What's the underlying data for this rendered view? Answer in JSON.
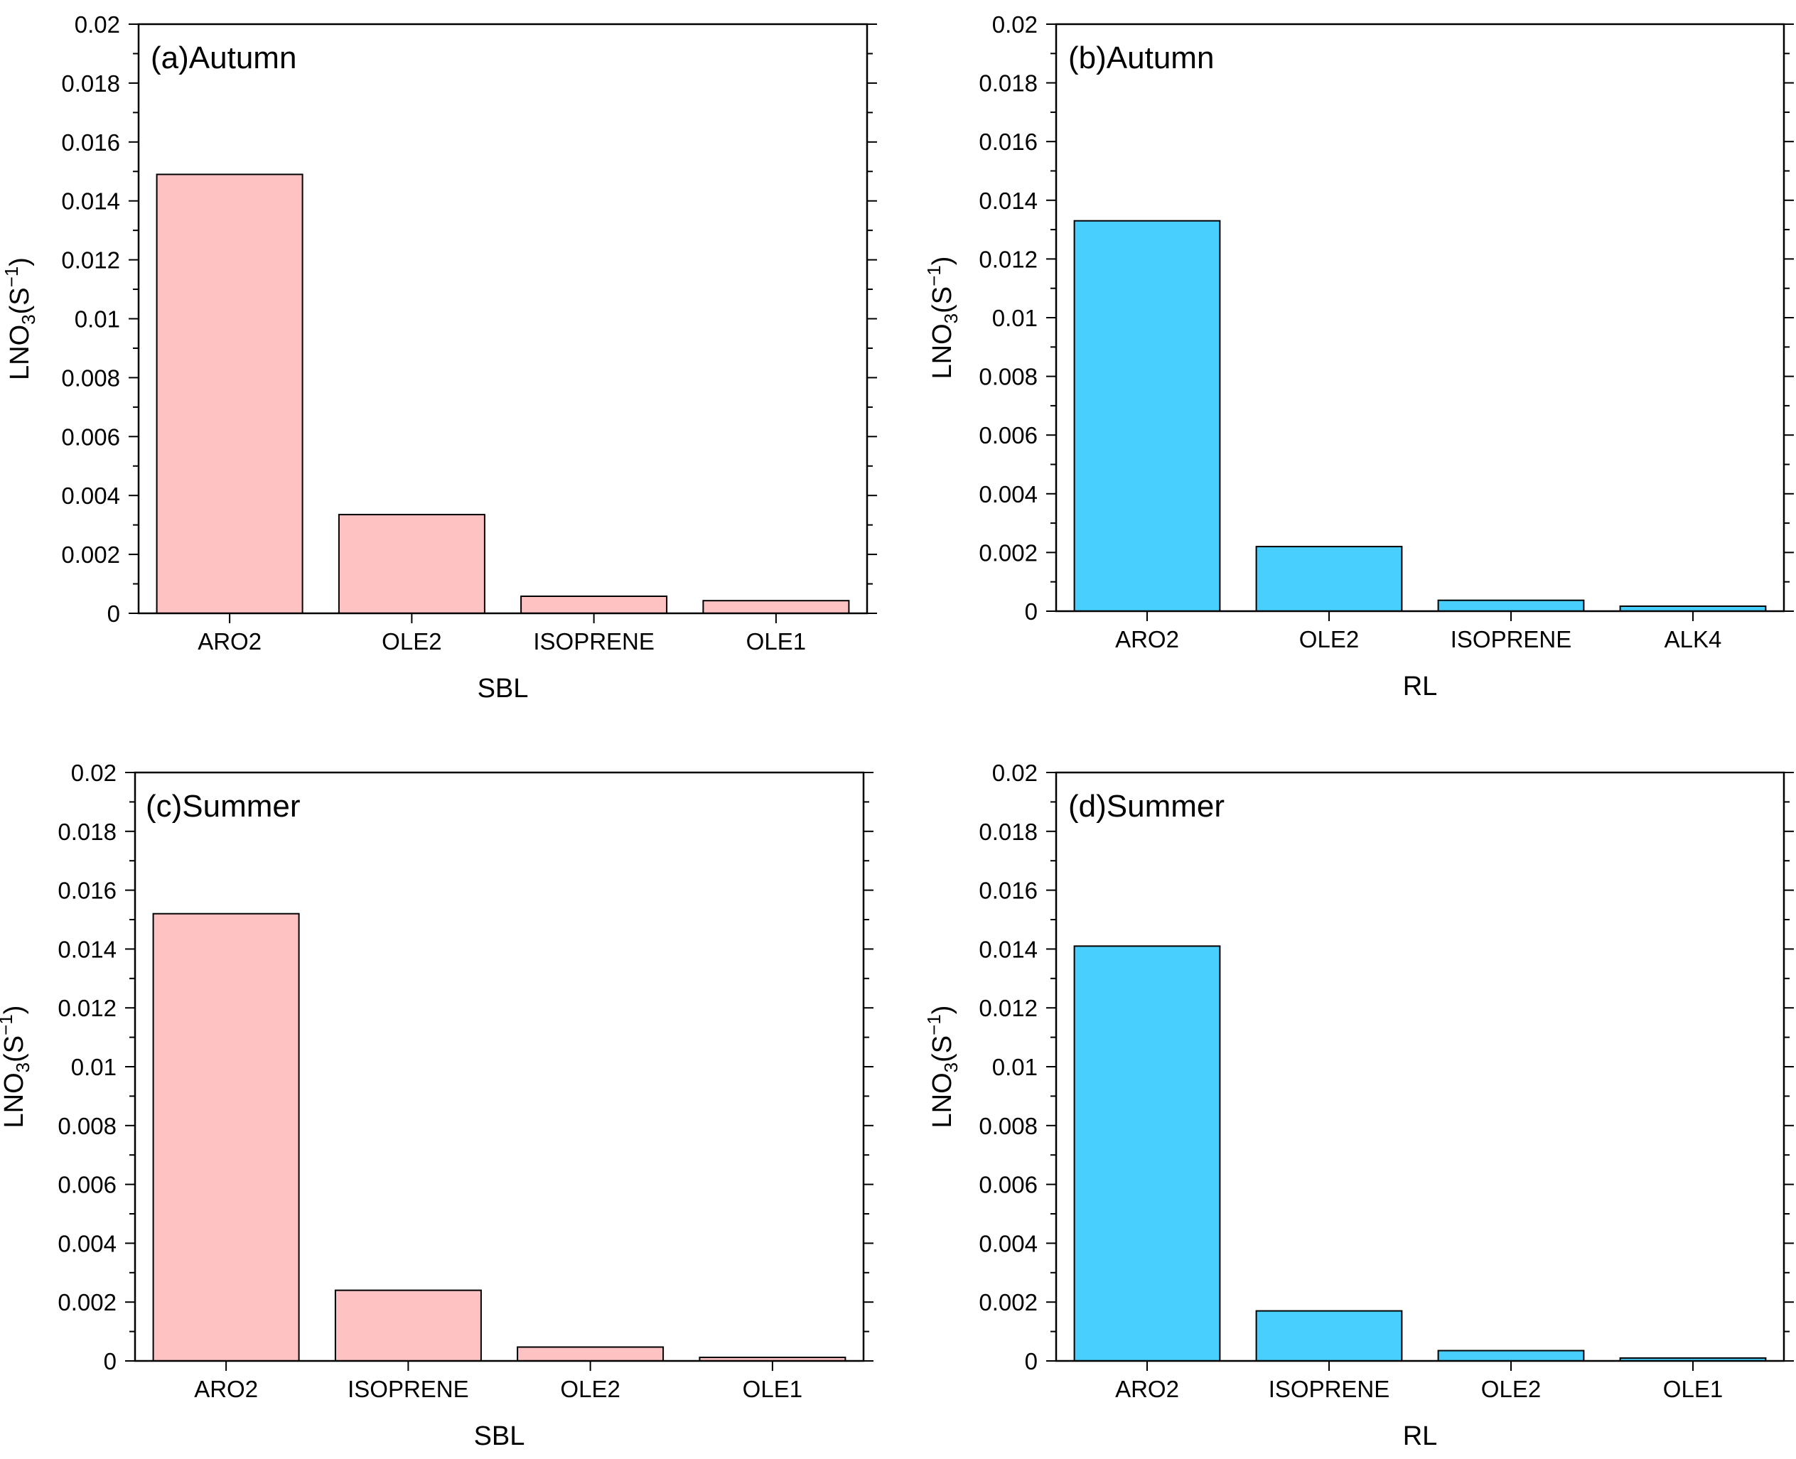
{
  "figure": {
    "ylabel_main": "LNO",
    "ylabel_sub": "3",
    "ylabel_open": "(S",
    "ylabel_sup": "−1",
    "ylabel_close": ")"
  },
  "colors": {
    "pink": "#ffc2c2",
    "blue": "#49cffe",
    "stroke": "#000000"
  },
  "chart_data": [
    {
      "type": "bar",
      "panel": "a",
      "title": "(a)Autumn",
      "xlabel": "SBL",
      "ylabel": "LNO3(S−1)",
      "categories": [
        "ARO2",
        "OLE2",
        "ISOPRENE",
        "OLE1"
      ],
      "values": [
        0.0149,
        0.00335,
        0.00058,
        0.00043
      ],
      "ylim": [
        0,
        0.02
      ],
      "yticks": [
        "0",
        "0.002",
        "0.004",
        "0.006",
        "0.008",
        "0.01",
        "0.012",
        "0.014",
        "0.016",
        "0.018",
        "0.02"
      ],
      "color": "pink"
    },
    {
      "type": "bar",
      "panel": "b",
      "title": "(b)Autumn",
      "xlabel": "RL",
      "ylabel": "LNO3(S−1)",
      "categories": [
        "ARO2",
        "OLE2",
        "ISOPRENE",
        "ALK4"
      ],
      "values": [
        0.0133,
        0.0022,
        0.00037,
        0.00017
      ],
      "ylim": [
        0,
        0.02
      ],
      "yticks": [
        "0",
        "0.002",
        "0.004",
        "0.006",
        "0.008",
        "0.01",
        "0.012",
        "0.014",
        "0.016",
        "0.018",
        "0.02"
      ],
      "color": "blue"
    },
    {
      "type": "bar",
      "panel": "c",
      "title": "(c)Summer",
      "xlabel": "SBL",
      "ylabel": "LNO3(S−1)",
      "categories": [
        "ARO2",
        "ISOPRENE",
        "OLE2",
        "OLE1"
      ],
      "values": [
        0.0152,
        0.0024,
        0.00047,
        0.00012
      ],
      "ylim": [
        0,
        0.02
      ],
      "yticks": [
        "0",
        "0.002",
        "0.004",
        "0.006",
        "0.008",
        "0.01",
        "0.012",
        "0.014",
        "0.016",
        "0.018",
        "0.02"
      ],
      "color": "pink"
    },
    {
      "type": "bar",
      "panel": "d",
      "title": "(d)Summer",
      "xlabel": "RL",
      "ylabel": "LNO3(S−1)",
      "categories": [
        "ARO2",
        "ISOPRENE",
        "OLE2",
        "OLE1"
      ],
      "values": [
        0.0141,
        0.0017,
        0.00035,
        0.0001
      ],
      "ylim": [
        0,
        0.02
      ],
      "yticks": [
        "0",
        "0.002",
        "0.004",
        "0.006",
        "0.008",
        "0.01",
        "0.012",
        "0.014",
        "0.016",
        "0.018",
        "0.02"
      ],
      "color": "blue"
    }
  ]
}
